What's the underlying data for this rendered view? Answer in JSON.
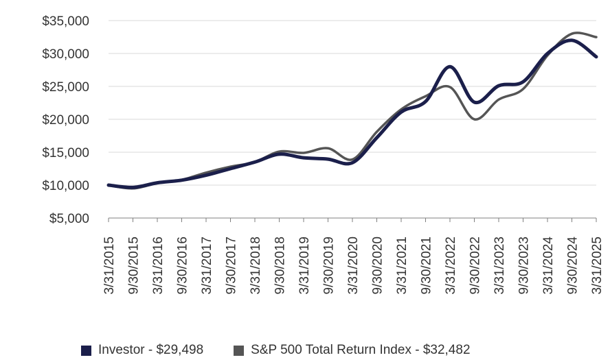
{
  "chart_data": {
    "type": "line",
    "x": [
      "3/31/2015",
      "9/30/2015",
      "3/31/2016",
      "9/30/2016",
      "3/31/2017",
      "9/30/2017",
      "3/31/2018",
      "9/30/2018",
      "3/31/2019",
      "9/30/2019",
      "3/31/2020",
      "9/30/2020",
      "3/31/2021",
      "9/30/2021",
      "3/31/2022",
      "9/30/2022",
      "3/31/2023",
      "9/30/2023",
      "3/31/2024",
      "9/30/2024",
      "3/31/2025"
    ],
    "y_ticks": [
      "$5,000",
      "$10,000",
      "$15,000",
      "$20,000",
      "$25,000",
      "$30,000",
      "$35,000"
    ],
    "y_tick_values": [
      5000,
      10000,
      15000,
      20000,
      25000,
      30000,
      35000
    ],
    "ylim": [
      5000,
      35000
    ],
    "series": [
      {
        "name": "Investor",
        "legend": "Investor - $29,498",
        "color": "#1b1f4b",
        "values": [
          10000,
          9650,
          10350,
          10750,
          11500,
          12500,
          13500,
          14700,
          14150,
          13950,
          13400,
          17200,
          21100,
          22700,
          28000,
          22600,
          25100,
          25700,
          30000,
          32000,
          29498
        ]
      },
      {
        "name": "S&P 500 Total Return Index",
        "legend": "S&P 500 Total Return Index - $32,482",
        "color": "#555555",
        "values": [
          10000,
          9500,
          10300,
          10800,
          11900,
          12800,
          13500,
          15100,
          14900,
          15600,
          13900,
          18100,
          21500,
          23500,
          24900,
          20000,
          23000,
          24600,
          29700,
          33000,
          32482
        ]
      }
    ]
  }
}
